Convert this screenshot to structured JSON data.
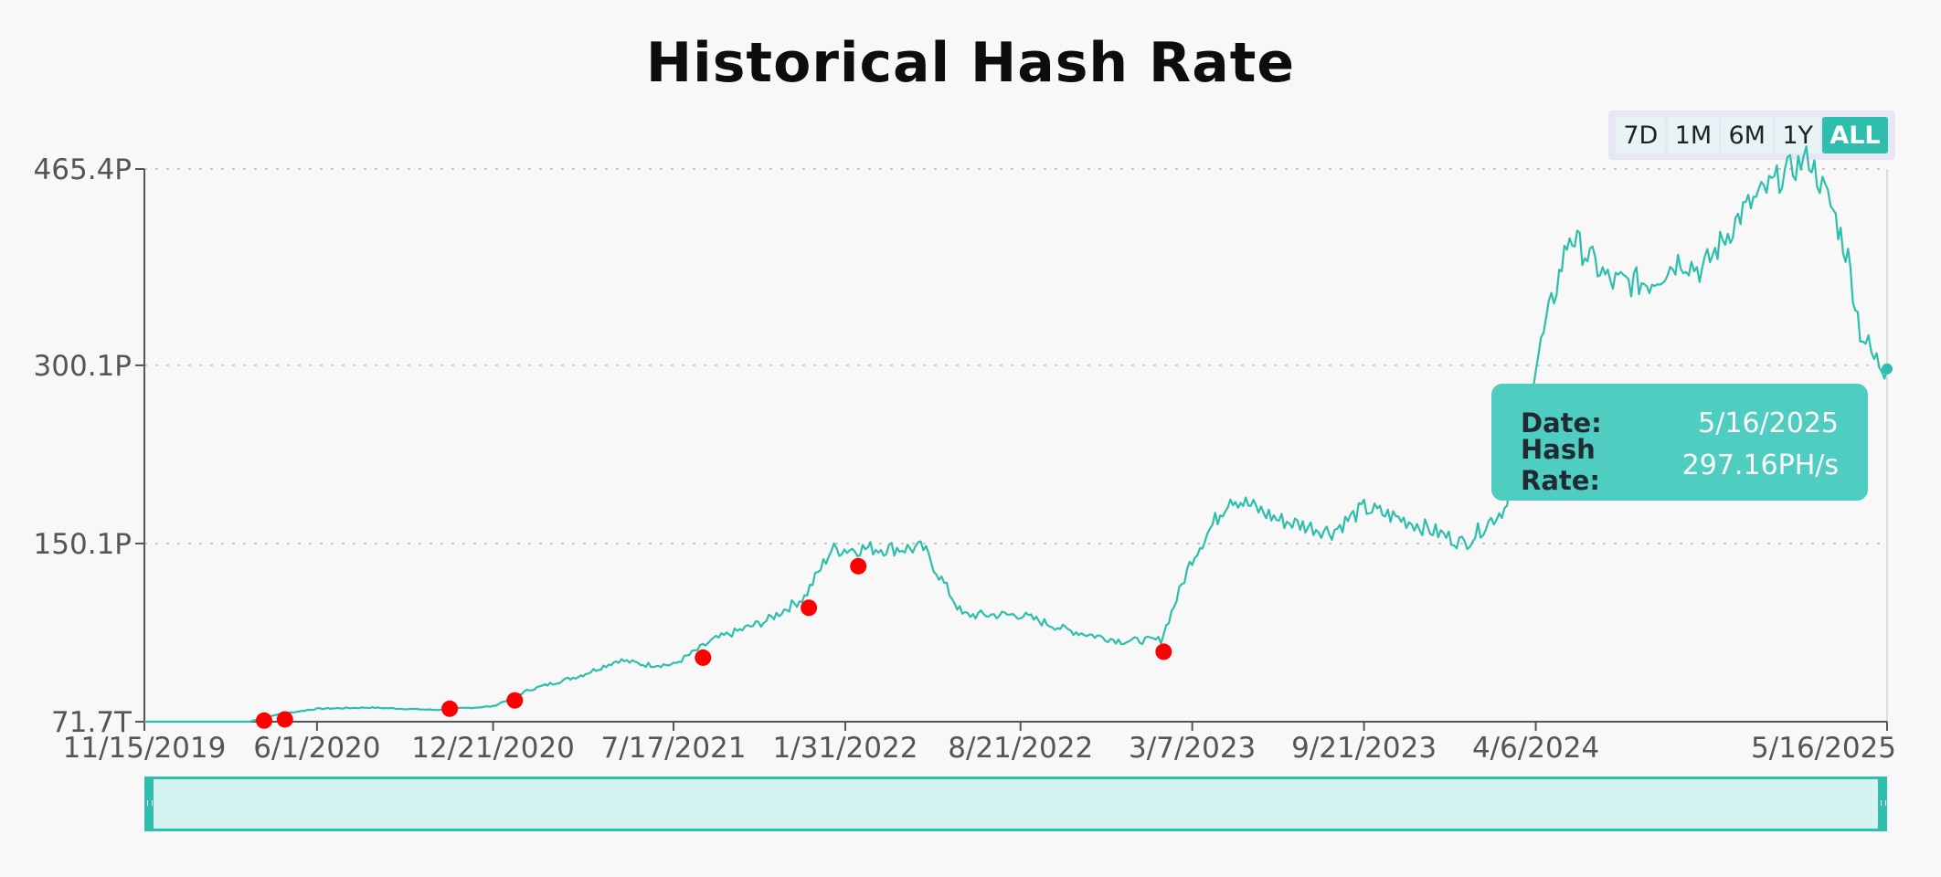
{
  "chart_data": {
    "type": "line",
    "title": "Historical Hash Rate",
    "y_ticks": [
      "71.7T",
      "150.1P",
      "300.1P",
      "465.4P"
    ],
    "x_ticks": [
      "11/15/2019",
      "6/1/2020",
      "12/21/2020",
      "7/17/2021",
      "1/31/2022",
      "8/21/2022",
      "3/7/2023",
      "9/21/2023",
      "4/6/2024",
      "5/16/2025"
    ],
    "series": [
      {
        "x": [
          "2019-11-15",
          "2020-03-15",
          "2020-04-15",
          "2020-06-01",
          "2020-08-01",
          "2020-10-15",
          "2020-12-21",
          "2021-02-01",
          "2021-04-01",
          "2021-05-15",
          "2021-06-15",
          "2021-07-17",
          "2021-09-01",
          "2021-11-01",
          "2021-12-15",
          "2022-01-15",
          "2022-03-01",
          "2022-05-01",
          "2022-06-15",
          "2022-08-21",
          "2022-10-15",
          "2022-12-15",
          "2023-01-30",
          "2023-03-07",
          "2023-04-20",
          "2023-06-15",
          "2023-08-15",
          "2023-09-21",
          "2023-11-15",
          "2024-01-15",
          "2024-03-01",
          "2024-04-06",
          "2024-05-15",
          "2024-07-01",
          "2024-08-15",
          "2024-09-20",
          "2024-10-15",
          "2024-12-01",
          "2025-01-15",
          "2025-02-15",
          "2025-03-15",
          "2025-04-01",
          "2025-04-15",
          "2025-05-01",
          "2025-05-16"
        ],
        "y": [
          0.07,
          0.07,
          6,
          11,
          12,
          10,
          13,
          27,
          39,
          52,
          48,
          48,
          69,
          85,
          105,
          145,
          146,
          146,
          90,
          90,
          77,
          68,
          69,
          138,
          190,
          170,
          160,
          180,
          168,
          150,
          180,
          300,
          410,
          370,
          370,
          390,
          380,
          430,
          460,
          475,
          430,
          390,
          330,
          305,
          297.16
        ]
      }
    ],
    "markers": [
      {
        "x": "2020-04-01",
        "y": 1
      },
      {
        "x": "2020-04-25",
        "y": 2
      },
      {
        "x": "2020-11-01",
        "y": 11
      },
      {
        "x": "2021-01-15",
        "y": 18
      },
      {
        "x": "2021-08-20",
        "y": 54
      },
      {
        "x": "2021-12-20",
        "y": 96
      },
      {
        "x": "2022-02-15",
        "y": 131
      },
      {
        "x": "2023-02-02",
        "y": 59
      }
    ],
    "ylim": [
      0.07,
      465.4
    ],
    "grid": true,
    "line_color": "#2dbfac",
    "marker_color": "#ff0000"
  },
  "range_selector": {
    "buttons": [
      "7D",
      "1M",
      "6M",
      "1Y",
      "ALL"
    ],
    "active": "ALL"
  },
  "tooltip": {
    "date_label": "Date:",
    "date_value": "5/16/2025",
    "rate_label": "Hash Rate:",
    "rate_value": "297.16PH/s"
  },
  "colors": {
    "accent": "#2dbfac",
    "tooltip_bg": "#4ecdc0",
    "navigator_bg": "#d4f2ef",
    "marker": "#ff0000"
  }
}
